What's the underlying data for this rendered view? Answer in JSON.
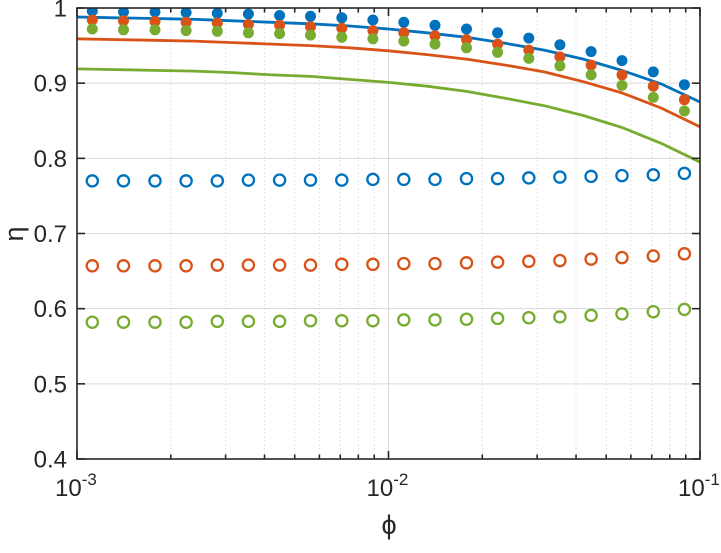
{
  "chart_data": {
    "type": "line+scatter",
    "title": "",
    "xlabel": "ϕ",
    "ylabel": "η",
    "xscale": "log",
    "xlim": [
      0.001,
      0.1
    ],
    "ylim": [
      0.4,
      1.0
    ],
    "grid": {
      "major": true,
      "minor_x_dotted": true,
      "legend": "none"
    },
    "frame_color": "#262626",
    "grid_color": "#d9d9d9",
    "xticks": [
      {
        "value": 0.001,
        "base": "10",
        "exponent": "-3"
      },
      {
        "value": 0.01,
        "base": "10",
        "exponent": "-2"
      },
      {
        "value": 0.1,
        "base": "10",
        "exponent": "-1"
      }
    ],
    "yticks": [
      {
        "value": 0.4,
        "label": "0.4"
      },
      {
        "value": 0.5,
        "label": "0.5"
      },
      {
        "value": 0.6,
        "label": "0.6"
      },
      {
        "value": 0.7,
        "label": "0.7"
      },
      {
        "value": 0.8,
        "label": "0.8"
      },
      {
        "value": 0.9,
        "label": "0.9"
      },
      {
        "value": 1.0,
        "label": "1"
      }
    ],
    "colors": {
      "blue": "#0072BD",
      "orange": "#D95319",
      "green": "#77AC30"
    },
    "lines": [
      {
        "name": "blue-line",
        "color": "#0072BD",
        "x": [
          0.001,
          0.00133,
          0.00178,
          0.00237,
          0.00316,
          0.00422,
          0.00562,
          0.0075,
          0.01,
          0.0133,
          0.0178,
          0.0237,
          0.0316,
          0.0422,
          0.0562,
          0.075,
          0.1
        ],
        "y": [
          0.988,
          0.987,
          0.986,
          0.985,
          0.983,
          0.981,
          0.979,
          0.976,
          0.972,
          0.967,
          0.961,
          0.953,
          0.944,
          0.932,
          0.917,
          0.899,
          0.875
        ]
      },
      {
        "name": "orange-line",
        "color": "#D95319",
        "x": [
          0.001,
          0.00133,
          0.00178,
          0.00237,
          0.00316,
          0.00422,
          0.00562,
          0.0075,
          0.01,
          0.0133,
          0.0178,
          0.0237,
          0.0316,
          0.0422,
          0.0562,
          0.075,
          0.1
        ],
        "y": [
          0.959,
          0.958,
          0.957,
          0.956,
          0.954,
          0.952,
          0.95,
          0.947,
          0.943,
          0.938,
          0.932,
          0.924,
          0.915,
          0.902,
          0.887,
          0.867,
          0.842
        ]
      },
      {
        "name": "green-line",
        "color": "#77AC30",
        "x": [
          0.001,
          0.00133,
          0.00178,
          0.00237,
          0.00316,
          0.00422,
          0.00562,
          0.0075,
          0.01,
          0.0133,
          0.0178,
          0.0237,
          0.0316,
          0.0422,
          0.0562,
          0.075,
          0.1
        ],
        "y": [
          0.919,
          0.918,
          0.917,
          0.916,
          0.914,
          0.911,
          0.909,
          0.905,
          0.901,
          0.896,
          0.889,
          0.88,
          0.87,
          0.857,
          0.841,
          0.82,
          0.795
        ]
      }
    ],
    "scatter": [
      {
        "name": "blue-filled-dots",
        "marker": "filled",
        "color": "#0072BD",
        "x": [
          0.00112,
          0.00141,
          0.00178,
          0.00224,
          0.00282,
          0.00355,
          0.00447,
          0.00562,
          0.00708,
          0.00891,
          0.0112,
          0.0141,
          0.0178,
          0.0224,
          0.0282,
          0.0355,
          0.0447,
          0.0562,
          0.0708,
          0.0891
        ],
        "y": [
          0.996,
          0.995,
          0.995,
          0.994,
          0.993,
          0.992,
          0.99,
          0.989,
          0.987,
          0.984,
          0.981,
          0.977,
          0.972,
          0.967,
          0.96,
          0.951,
          0.942,
          0.93,
          0.915,
          0.898
        ]
      },
      {
        "name": "orange-filled-dots",
        "marker": "filled",
        "color": "#D95319",
        "x": [
          0.00112,
          0.00141,
          0.00178,
          0.00224,
          0.00282,
          0.00355,
          0.00447,
          0.00562,
          0.00708,
          0.00891,
          0.0112,
          0.0141,
          0.0178,
          0.0224,
          0.0282,
          0.0355,
          0.0447,
          0.0562,
          0.0708,
          0.0891
        ],
        "y": [
          0.984,
          0.983,
          0.982,
          0.981,
          0.98,
          0.978,
          0.977,
          0.975,
          0.973,
          0.97,
          0.967,
          0.963,
          0.958,
          0.952,
          0.944,
          0.935,
          0.924,
          0.911,
          0.896,
          0.878
        ]
      },
      {
        "name": "green-filled-dots",
        "marker": "filled",
        "color": "#77AC30",
        "x": [
          0.00112,
          0.00141,
          0.00178,
          0.00224,
          0.00282,
          0.00355,
          0.00447,
          0.00562,
          0.00708,
          0.00891,
          0.0112,
          0.0141,
          0.0178,
          0.0224,
          0.0282,
          0.0355,
          0.0447,
          0.0562,
          0.0708,
          0.0891
        ],
        "y": [
          0.972,
          0.971,
          0.971,
          0.97,
          0.969,
          0.967,
          0.966,
          0.964,
          0.961,
          0.959,
          0.956,
          0.952,
          0.947,
          0.941,
          0.933,
          0.923,
          0.911,
          0.897,
          0.881,
          0.863
        ]
      },
      {
        "name": "blue-open-circles",
        "marker": "open",
        "color": "#0072BD",
        "x": [
          0.00112,
          0.00141,
          0.00178,
          0.00224,
          0.00282,
          0.00355,
          0.00447,
          0.00562,
          0.00708,
          0.00891,
          0.0112,
          0.0141,
          0.0178,
          0.0224,
          0.0282,
          0.0355,
          0.0447,
          0.0562,
          0.0708,
          0.0891
        ],
        "y": [
          0.77,
          0.77,
          0.77,
          0.77,
          0.77,
          0.771,
          0.771,
          0.771,
          0.771,
          0.772,
          0.772,
          0.772,
          0.773,
          0.773,
          0.774,
          0.775,
          0.776,
          0.777,
          0.778,
          0.78
        ]
      },
      {
        "name": "orange-open-circles",
        "marker": "open",
        "color": "#D95319",
        "x": [
          0.00112,
          0.00141,
          0.00178,
          0.00224,
          0.00282,
          0.00355,
          0.00447,
          0.00562,
          0.00708,
          0.00891,
          0.0112,
          0.0141,
          0.0178,
          0.0224,
          0.0282,
          0.0355,
          0.0447,
          0.0562,
          0.0708,
          0.0891
        ],
        "y": [
          0.657,
          0.657,
          0.657,
          0.657,
          0.658,
          0.658,
          0.658,
          0.658,
          0.659,
          0.659,
          0.66,
          0.66,
          0.661,
          0.662,
          0.663,
          0.664,
          0.666,
          0.668,
          0.67,
          0.673
        ]
      },
      {
        "name": "green-open-circles",
        "marker": "open",
        "color": "#77AC30",
        "x": [
          0.00112,
          0.00141,
          0.00178,
          0.00224,
          0.00282,
          0.00355,
          0.00447,
          0.00562,
          0.00708,
          0.00891,
          0.0112,
          0.0141,
          0.0178,
          0.0224,
          0.0282,
          0.0355,
          0.0447,
          0.0562,
          0.0708,
          0.0891
        ],
        "y": [
          0.582,
          0.582,
          0.582,
          0.582,
          0.583,
          0.583,
          0.583,
          0.584,
          0.584,
          0.584,
          0.585,
          0.585,
          0.586,
          0.587,
          0.588,
          0.589,
          0.591,
          0.593,
          0.596,
          0.599
        ]
      }
    ]
  }
}
